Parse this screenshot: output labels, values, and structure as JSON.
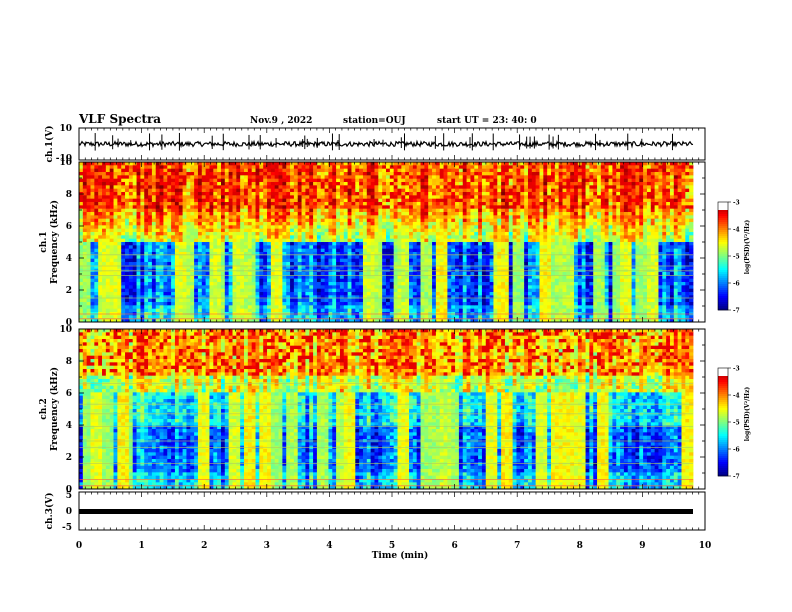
{
  "header": {
    "title": "VLF Spectra",
    "date": "Nov.9  , 2022",
    "station": "station=OUJ",
    "start": "start  UT  =   23: 40: 0"
  },
  "chart_data": [
    {
      "type": "line",
      "id": "ch1-waveform",
      "ylabel": "ch.1(V)",
      "ylim": [
        -10,
        10
      ],
      "yticks": [
        "10",
        "-10"
      ],
      "xlim": [
        0,
        10
      ],
      "description_values": {
        "baseline": 0,
        "typical_amplitude": 1.5
      }
    },
    {
      "type": "heatmap",
      "id": "ch1-spectrogram",
      "ylabel_line1": "ch.1",
      "ylabel_line2": "Frequency  (kHz)",
      "ylim": [
        0,
        10
      ],
      "yticks": [
        "0",
        "2",
        "4",
        "6",
        "8",
        "10"
      ],
      "xlim": [
        0,
        10
      ],
      "colorbar": {
        "label": "log(PSD)(V²/Hz)",
        "range": [
          -7,
          -3
        ],
        "ticks": [
          "-3",
          "-4",
          "-5",
          "-6",
          "-7"
        ]
      }
    },
    {
      "type": "heatmap",
      "id": "ch2-spectrogram",
      "ylabel_line1": "ch.2",
      "ylabel_line2": "Frequency  (kHz)",
      "ylim": [
        0,
        10
      ],
      "yticks": [
        "0",
        "2",
        "4",
        "6",
        "8",
        "10"
      ],
      "xlim": [
        0,
        10
      ],
      "colorbar": {
        "label": "log(PSD)(V²/Hz)",
        "range": [
          -7,
          -3
        ],
        "ticks": [
          "-3",
          "-4",
          "-5",
          "-6",
          "-7"
        ]
      }
    },
    {
      "type": "line",
      "id": "ch3-waveform",
      "ylabel": "ch.3(V)",
      "ylim": [
        -5,
        5
      ],
      "yticks": [
        "5",
        "0",
        "-5"
      ],
      "xlim": [
        0,
        10
      ],
      "description_values": {
        "level": 0
      }
    }
  ],
  "xaxis": {
    "label": "Time  (min)",
    "ticks": [
      "0",
      "1",
      "2",
      "3",
      "4",
      "5",
      "6",
      "7",
      "8",
      "9",
      "10"
    ]
  },
  "colors": {
    "low": "#000080",
    "high": "#ff0000"
  }
}
